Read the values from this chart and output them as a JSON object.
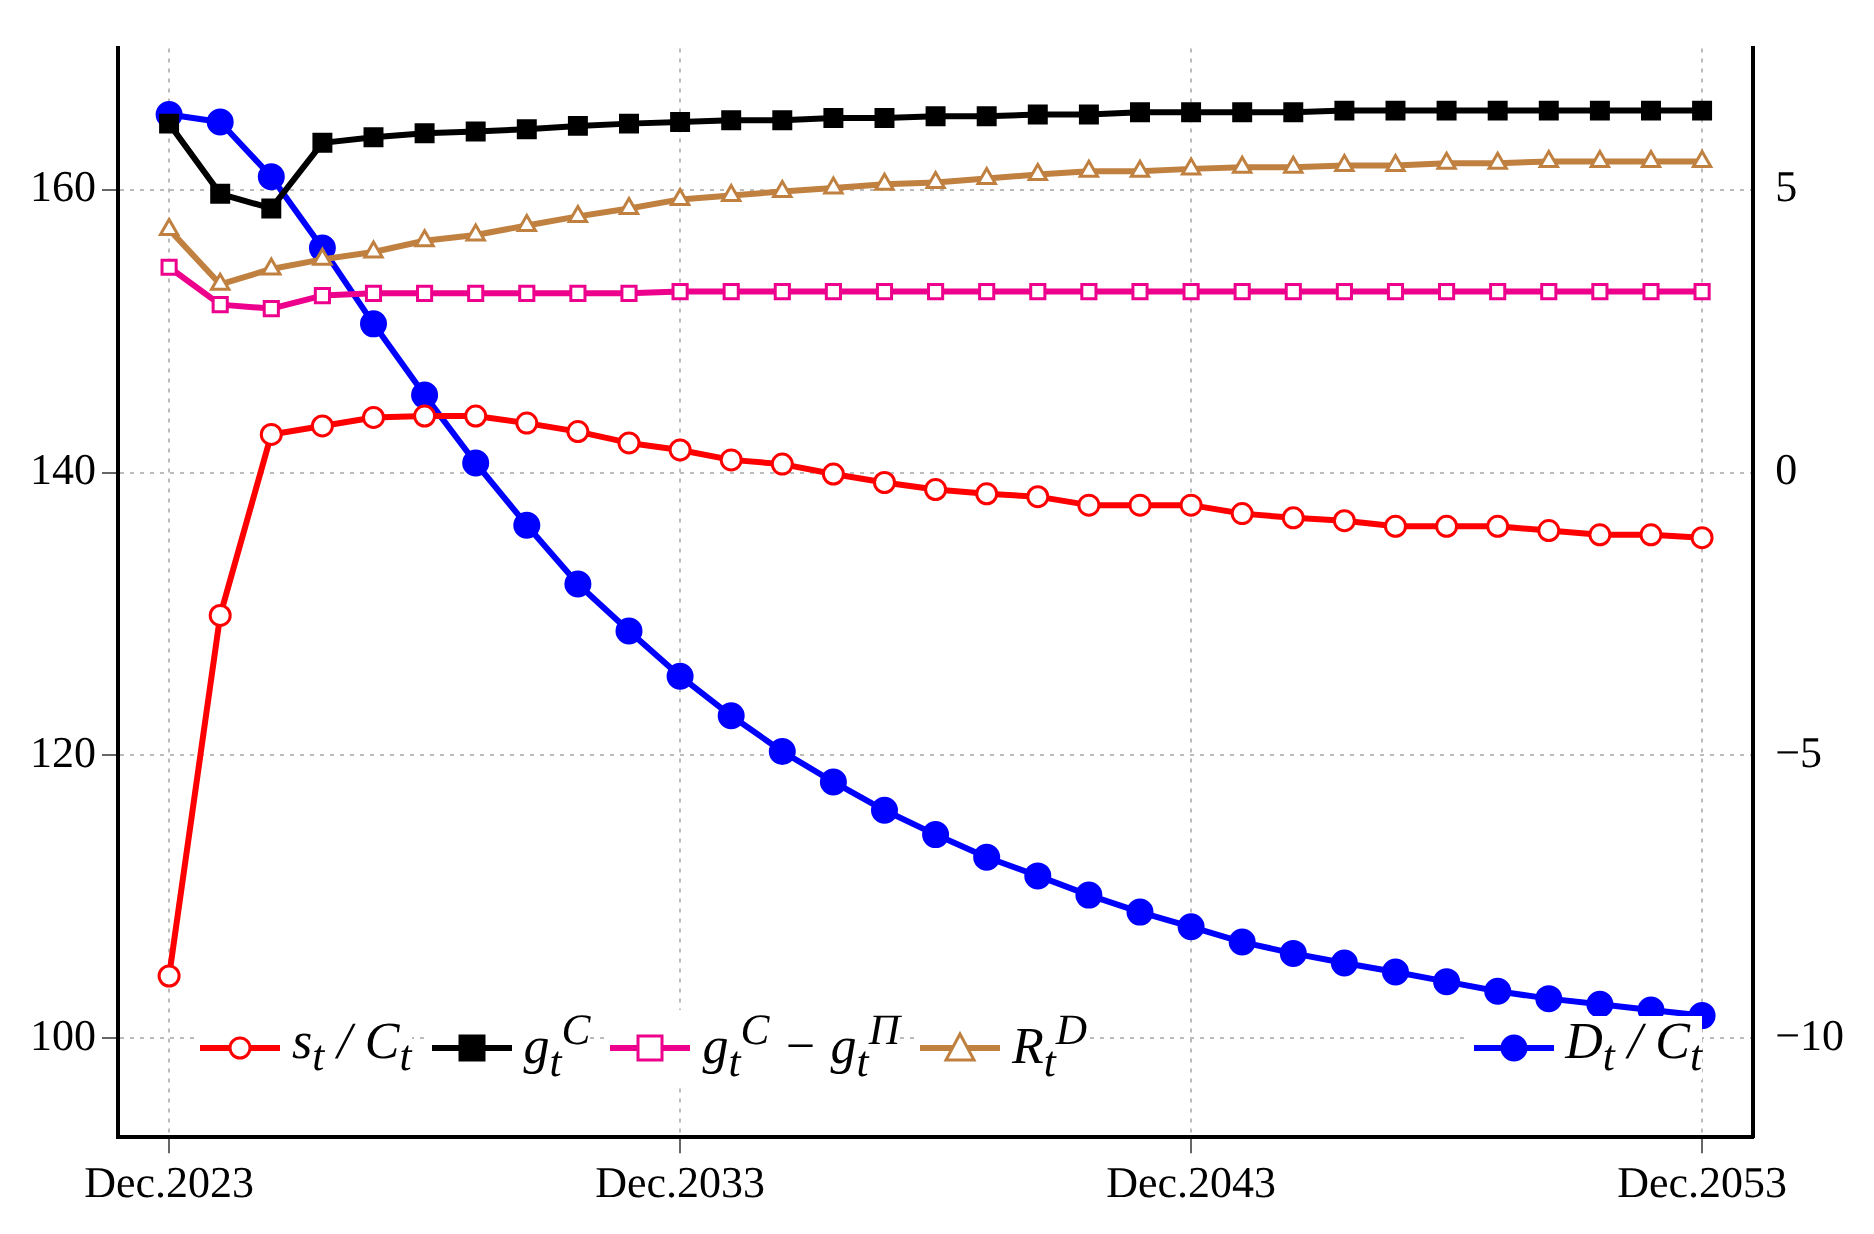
{
  "chart_data": {
    "type": "line",
    "categories": [
      "Dec.2023",
      null,
      null,
      null,
      null,
      null,
      null,
      null,
      null,
      null,
      "Dec.2033",
      null,
      null,
      null,
      null,
      null,
      null,
      null,
      null,
      null,
      "Dec.2043",
      null,
      null,
      null,
      null,
      null,
      null,
      null,
      null,
      null,
      "Dec.2053"
    ],
    "series": [
      {
        "name": "s$_{t}$ / C$_{t}$",
        "color": "#ff0000",
        "marker": "circle",
        "values": [
          104.4,
          129.9,
          142.7,
          143.3,
          143.9,
          144.0,
          144.0,
          143.5,
          142.9,
          142.1,
          141.6,
          140.9,
          140.6,
          139.9,
          139.3,
          138.8,
          138.5,
          138.3,
          137.7,
          137.7,
          137.7,
          137.1,
          136.8,
          136.6,
          136.2,
          136.2,
          136.2,
          135.9,
          135.6,
          135.6,
          135.4
        ]
      },
      {
        "name": "g$_{t}$$^{C}$",
        "color": "#000000",
        "marker": "square",
        "axis": "y2",
        "values": [
          6.17,
          4.93,
          4.67,
          5.83,
          5.93,
          6.0,
          6.03,
          6.07,
          6.13,
          6.17,
          6.2,
          6.23,
          6.23,
          6.27,
          6.27,
          6.3,
          6.3,
          6.33,
          6.33,
          6.37,
          6.37,
          6.37,
          6.37,
          6.4,
          6.4,
          6.4,
          6.4,
          6.4,
          6.4,
          6.4,
          6.4
        ]
      },
      {
        "name": "g$_{t}$$^{C}$ − g$_{t}$$^{Π}$",
        "color": "#ec008c",
        "marker": "square",
        "axis": "y2",
        "values": [
          3.63,
          2.97,
          2.9,
          3.13,
          3.17,
          3.17,
          3.17,
          3.17,
          3.17,
          3.17,
          3.2,
          3.2,
          3.2,
          3.2,
          3.2,
          3.2,
          3.2,
          3.2,
          3.2,
          3.2,
          3.2,
          3.2,
          3.2,
          3.2,
          3.2,
          3.2,
          3.2,
          3.2,
          3.2,
          3.2,
          3.2
        ]
      },
      {
        "name": "R$_{t}$$^{D}$",
        "color": "#c08040",
        "marker": "triangle",
        "axis": "y2",
        "values": [
          4.3,
          3.33,
          3.6,
          3.77,
          3.9,
          4.1,
          4.2,
          4.37,
          4.53,
          4.67,
          4.83,
          4.9,
          4.97,
          5.03,
          5.1,
          5.13,
          5.2,
          5.27,
          5.33,
          5.33,
          5.37,
          5.4,
          5.4,
          5.43,
          5.43,
          5.47,
          5.47,
          5.5,
          5.5,
          5.5,
          5.5
        ]
      },
      {
        "name": "D$_{t}$ / C$_{t}$",
        "color": "#0000ff",
        "marker": "circle",
        "axis": "y2",
        "values": [
          6.33,
          6.2,
          5.23,
          3.97,
          2.63,
          1.37,
          0.17,
          -0.93,
          -1.97,
          -2.8,
          -3.6,
          -4.3,
          -4.93,
          -5.47,
          -5.97,
          -6.4,
          -6.8,
          -7.13,
          -7.47,
          -7.77,
          -8.03,
          -8.3,
          -8.5,
          -8.67,
          -8.83,
          -9.0,
          -9.17,
          -9.3,
          -9.4,
          -9.5,
          -9.6
        ]
      }
    ],
    "ylim": [
      93,
      170
    ],
    "yticks": [
      100,
      120,
      140,
      160
    ],
    "y2lim": [
      -11.75,
      7.5
    ],
    "y2ticks": [
      -10,
      -5,
      0,
      5
    ],
    "grid": true,
    "legend": "bottom",
    "line_style": "solid"
  }
}
